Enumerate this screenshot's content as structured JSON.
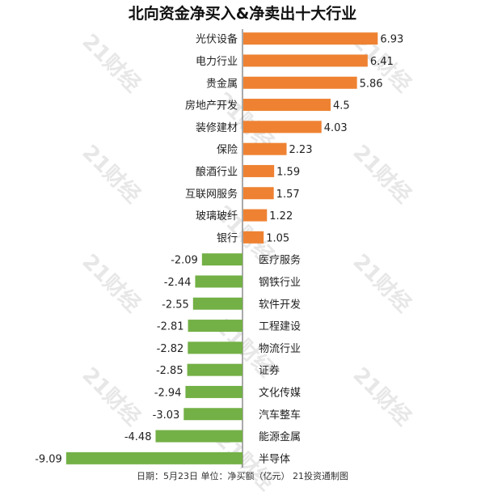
{
  "title": "北向资金净买入&净卖出十大行业",
  "footer": "日期：5月23日 单位：净买额（亿元） 21投资通制图",
  "watermark": "21财经",
  "colors": {
    "positive": "#ee8232",
    "negative": "#73b046",
    "axis": "#555555"
  },
  "chart_data": {
    "type": "bar",
    "orientation": "horizontal",
    "title": "北向资金净买入&净卖出十大行业",
    "categories": [
      "光伏设备",
      "电力行业",
      "贵金属",
      "房地产开发",
      "装修建材",
      "保险",
      "酿酒行业",
      "互联网服务",
      "玻璃玻纤",
      "银行",
      "医疗服务",
      "钢铁行业",
      "软件开发",
      "工程建设",
      "物流行业",
      "证券",
      "文化传媒",
      "汽车整车",
      "能源金属",
      "半导体"
    ],
    "values": [
      6.93,
      6.41,
      5.86,
      4.5,
      4.03,
      2.23,
      1.59,
      1.57,
      1.22,
      1.05,
      -2.09,
      -2.44,
      -2.55,
      -2.81,
      -2.82,
      -2.85,
      -2.94,
      -3.03,
      -4.48,
      -9.09
    ],
    "value_labels": [
      "6.93",
      "6.41",
      "5.86",
      "4.5",
      "4.03",
      "2.23",
      "1.59",
      "1.57",
      "1.22",
      "1.05",
      "-2.09",
      "-2.44",
      "-2.55",
      "-2.81",
      "-2.82",
      "-2.85",
      "-2.94",
      "-3.03",
      "-4.48",
      "-9.09"
    ],
    "grid": false,
    "legend": "none"
  }
}
